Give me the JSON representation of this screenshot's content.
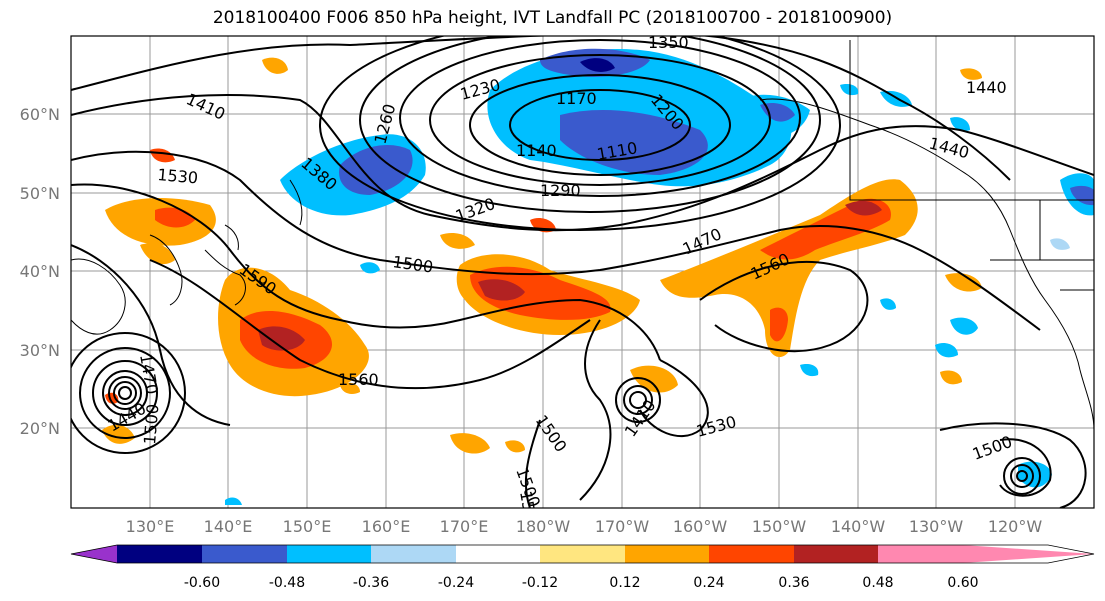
{
  "title": "2018100400 F006 850 hPa height, IVT Landfall PC (2018100700 - 2018100900)",
  "lat_labels": [
    "60°N",
    "50°N",
    "40°N",
    "30°N",
    "20°N"
  ],
  "lon_labels": [
    "130°E",
    "140°E",
    "150°E",
    "160°E",
    "170°E",
    "180°W",
    "170°W",
    "160°W",
    "150°W",
    "140°W",
    "130°W",
    "120°W"
  ],
  "colorbar": {
    "colors": [
      "#9932cc",
      "#000080",
      "#3a5acd",
      "#00bfff",
      "#add8f5",
      "#ffffff",
      "#ffe680",
      "#ffa500",
      "#ff4500",
      "#b22222",
      "#ff88b0"
    ],
    "tick_labels": [
      "-0.60",
      "-0.48",
      "-0.36",
      "-0.24",
      "-0.12",
      "0.12",
      "0.24",
      "0.36",
      "0.48",
      "0.60"
    ]
  },
  "contour_labels": [
    "1350",
    "1230",
    "1170",
    "1200",
    "1260",
    "1410",
    "1140",
    "1110",
    "1380",
    "1290",
    "1530",
    "1320",
    "1440",
    "1440",
    "1470",
    "1500",
    "1590",
    "1560",
    "1560",
    "1410",
    "1500",
    "1530",
    "1500",
    "1500",
    "1440",
    "1500",
    "1470",
    "1500"
  ]
}
